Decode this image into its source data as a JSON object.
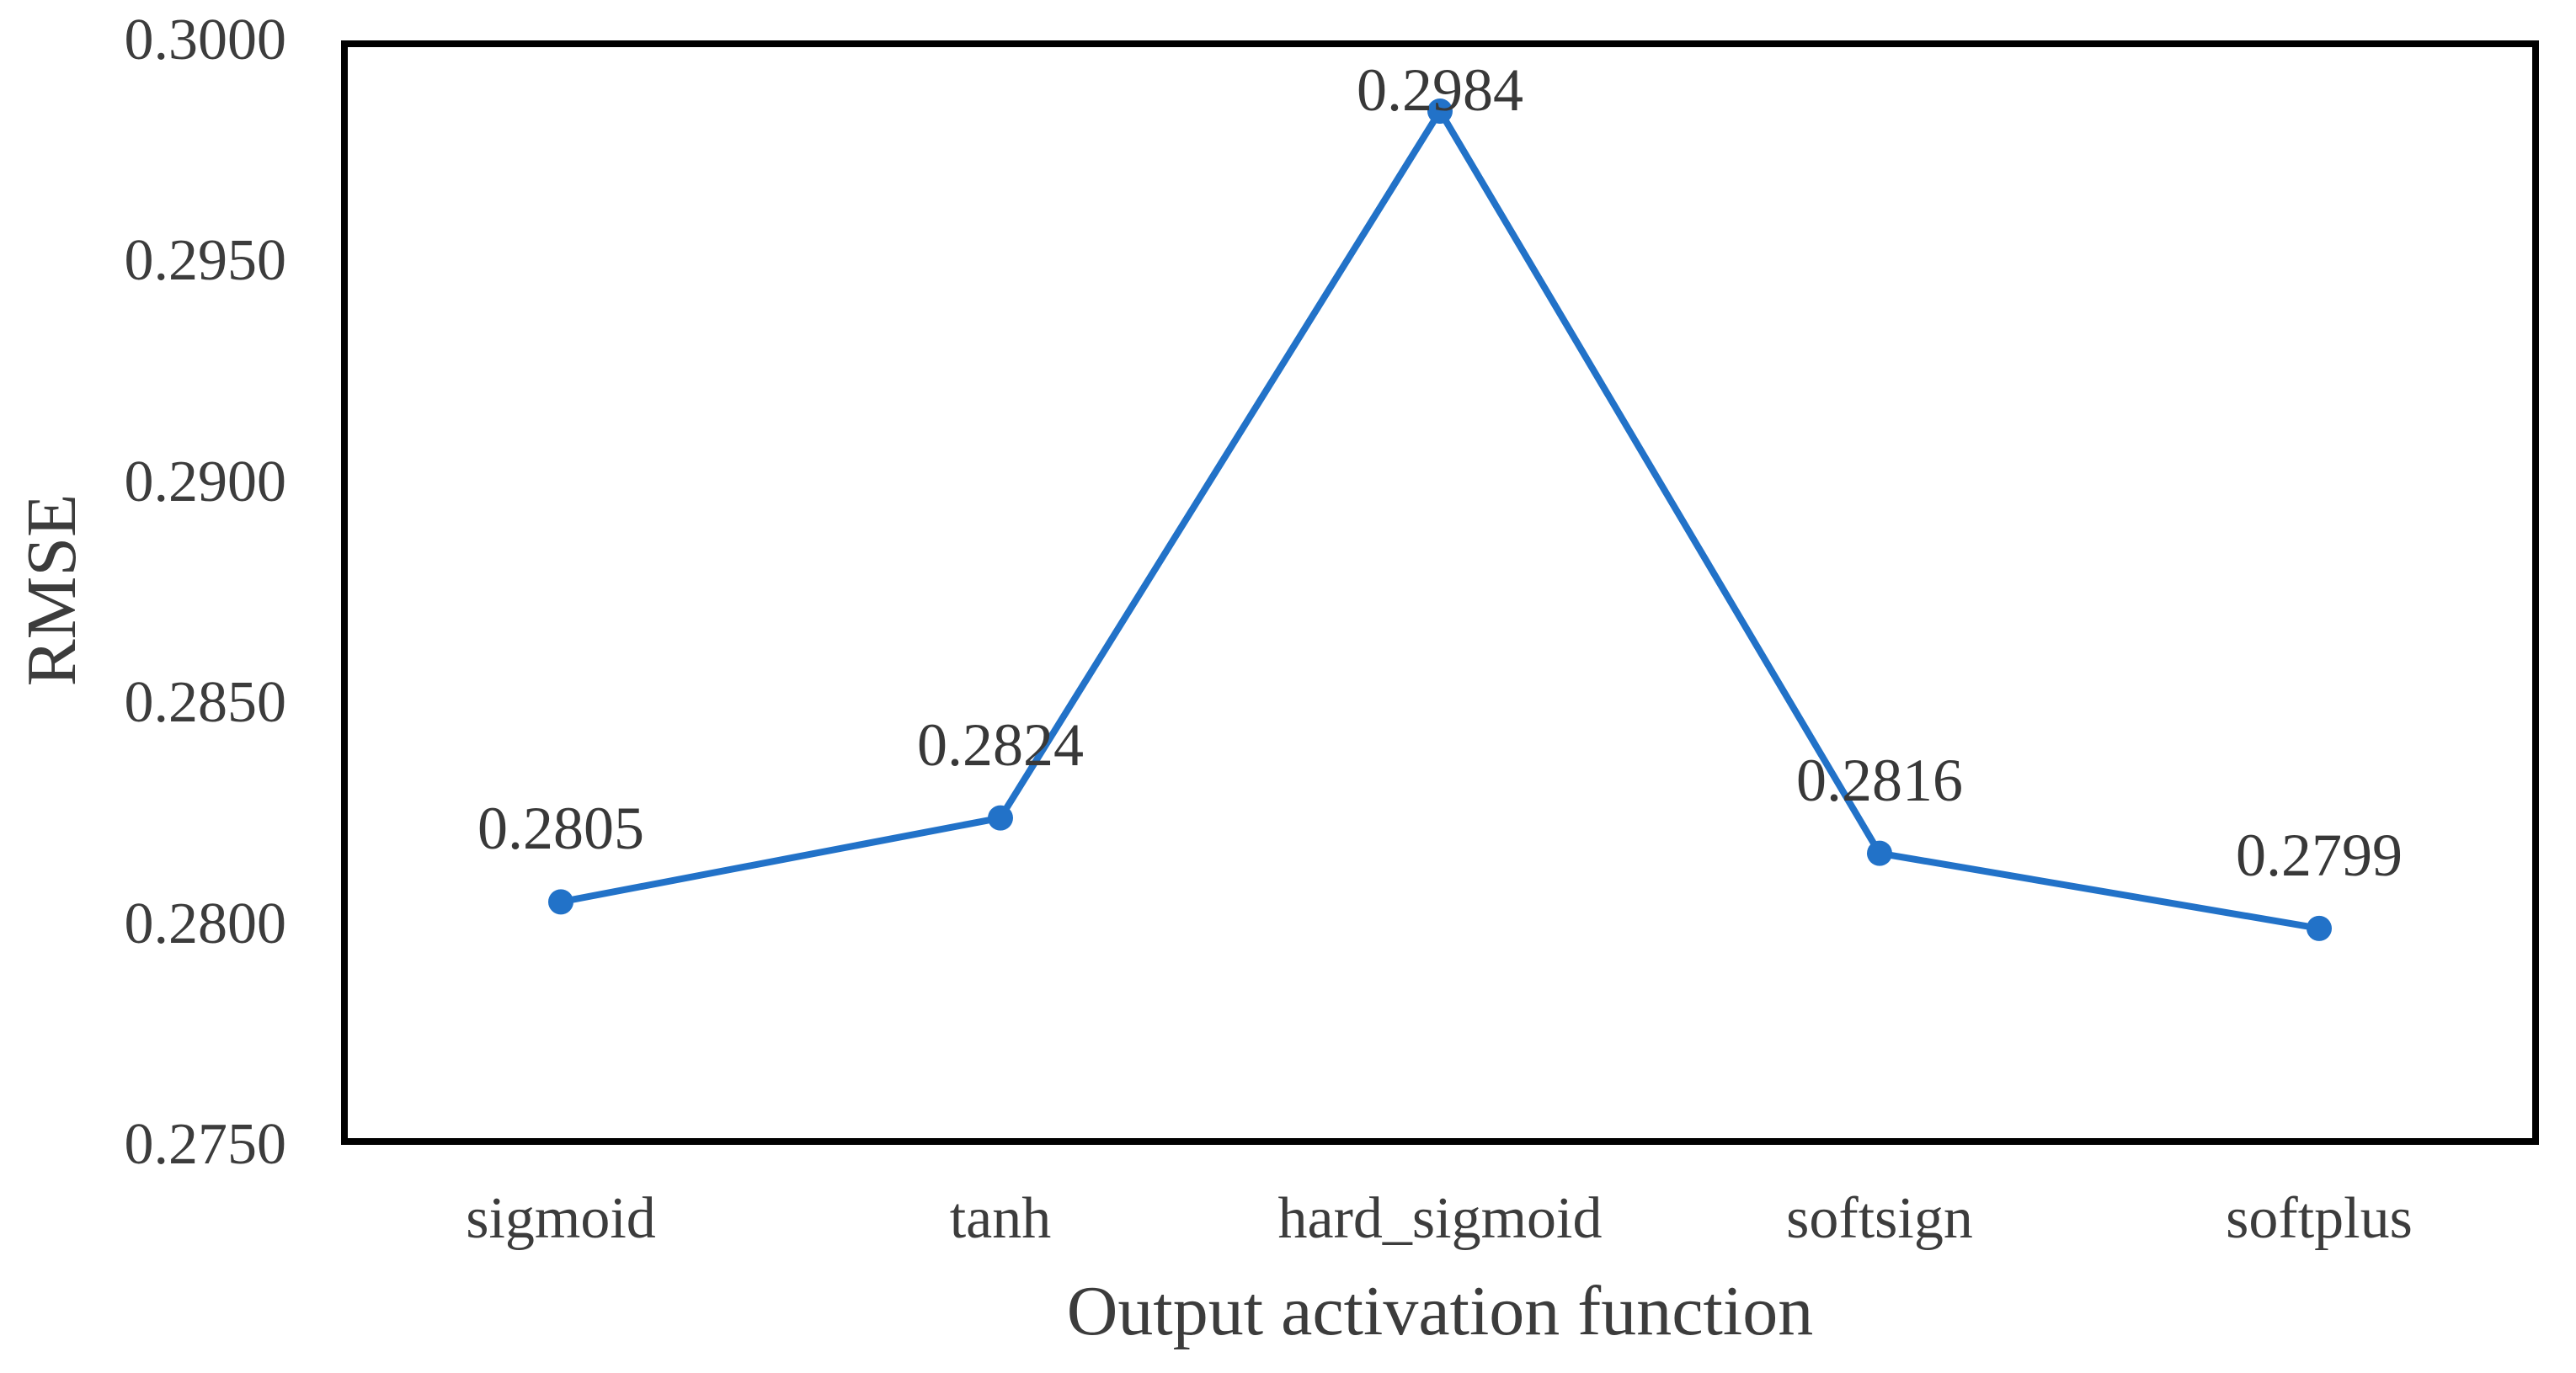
{
  "chart_data": {
    "type": "line",
    "title": "",
    "xlabel": "Output activation function",
    "ylabel": "RMSE",
    "categories": [
      "sigmoid",
      "tanh",
      "hard_sigmoid",
      "softsign",
      "softplus"
    ],
    "series": [
      {
        "name": "RMSE",
        "values": [
          0.2805,
          0.2824,
          0.2984,
          0.2816,
          0.2799
        ],
        "data_labels": [
          "0.2805",
          "0.2824",
          "0.2984",
          "0.2816",
          "0.2799"
        ]
      }
    ],
    "ylim": [
      0.275,
      0.3
    ],
    "ytick_values": [
      0.275,
      0.28,
      0.285,
      0.29,
      0.295,
      0.3
    ],
    "ytick_labels": [
      "0.2750",
      "0.2800",
      "0.2850",
      "0.2900",
      "0.2950",
      "0.3000"
    ],
    "grid": false,
    "legend_position": "none",
    "marker": "circle"
  },
  "colors": {
    "line": "#2272C8",
    "marker": "#2272C8",
    "plot_border": "#000000",
    "text": "#3c3c3c",
    "background": "#ffffff"
  }
}
